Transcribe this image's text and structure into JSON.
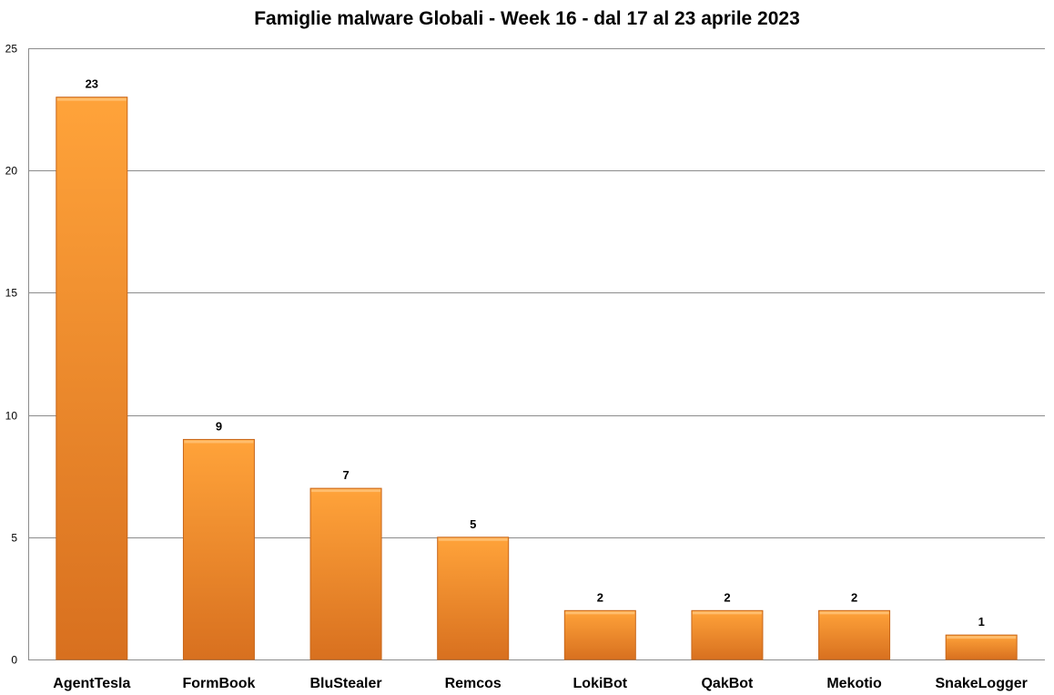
{
  "chart_data": {
    "type": "bar",
    "title": "Famiglie malware Globali - Week 16 - dal 17 al 23 aprile 2023",
    "xlabel": "",
    "ylabel": "",
    "categories": [
      "AgentTesla",
      "FormBook",
      "BluStealer",
      "Remcos",
      "LokiBot",
      "QakBot",
      "Mekotio",
      "SnakeLogger"
    ],
    "values": [
      23,
      9,
      7,
      5,
      2,
      2,
      2,
      1
    ],
    "ylim": [
      0,
      25
    ],
    "yticks": [
      0,
      5,
      10,
      15,
      20,
      25
    ],
    "grid": true,
    "legend": "none",
    "data_labels": true,
    "colors": {
      "bar_light": "#ffa33a",
      "bar_dark": "#d8701f",
      "bar_edge": "#c8661a",
      "grid": "#8c8c8c"
    }
  }
}
